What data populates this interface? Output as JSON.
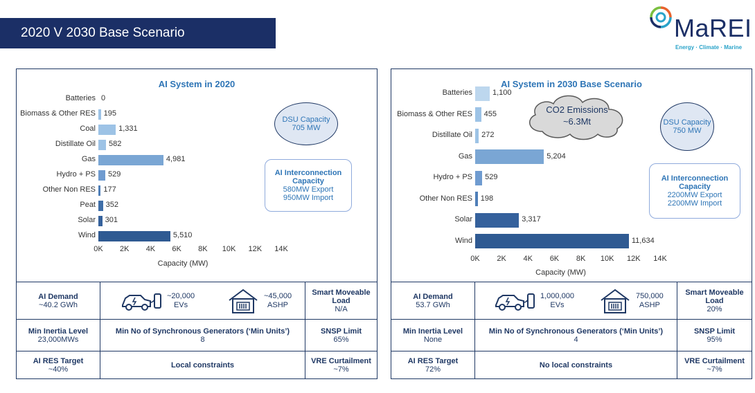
{
  "header": {
    "title": "2020 V 2030 Base Scenario"
  },
  "logo": {
    "name": "MaREI",
    "tagline": "Energy · Climate · Marine"
  },
  "panels": [
    {
      "chart_title": "AI System in 2020",
      "dsu": {
        "title": "DSU Capacity",
        "value": "705 MW"
      },
      "interconnection": {
        "title": "AI Interconnection Capacity",
        "export": "580MW Export",
        "import": "950MW Import"
      },
      "cloud": null,
      "table": {
        "demand_title": "AI Demand",
        "demand_value": "~40.2 GWh",
        "evs_value": "~20,000",
        "evs_label": "EVs",
        "ashp_value": "~45,000",
        "ashp_label": "ASHP",
        "smart_title": "Smart Moveable Load",
        "smart_value": "N/A",
        "inertia_title": "Min Inertia Level",
        "inertia_value": "23,000MWs",
        "gens_title": "Min No of Synchronous Generators (‘Min Units’)",
        "gens_value": "8",
        "snsp_title": "SNSP Limit",
        "snsp_value": "65%",
        "res_title": "AI RES Target",
        "res_value": "~40%",
        "constraints": "Local constraints",
        "vre_title": "VRE Curtailment",
        "vre_value": "~7%"
      }
    },
    {
      "chart_title": "AI System in 2030 Base Scenario",
      "dsu": {
        "title": "DSU Capacity",
        "value": "750 MW"
      },
      "interconnection": {
        "title": "AI Interconnection Capacity",
        "export": "2200MW Export",
        "import": "2200MW Import"
      },
      "cloud": {
        "title": "CO2 Emissions",
        "value": "~6.3Mt"
      },
      "table": {
        "demand_title": "AI Demand",
        "demand_value": "53.7 GWh",
        "evs_value": "1,000,000",
        "evs_label": "EVs",
        "ashp_value": "750,000",
        "ashp_label": "ASHP",
        "smart_title": "Smart Moveable Load",
        "smart_value": "20%",
        "inertia_title": "Min Inertia Level",
        "inertia_value": "None",
        "gens_title": "Min No of Synchronous Generators (‘Min Units’)",
        "gens_value": "4",
        "snsp_title": "SNSP Limit",
        "snsp_value": "95%",
        "res_title": "AI RES Target",
        "res_value": "72%",
        "constraints": "No local constraints",
        "vre_title": "VRE Curtailment",
        "vre_value": "~7%"
      }
    }
  ],
  "chart_data": [
    {
      "type": "bar",
      "orientation": "horizontal",
      "title": "AI System in 2020",
      "xlabel": "Capacity (MW)",
      "xlim": [
        0,
        14000
      ],
      "ticks": [
        "0K",
        "2K",
        "4K",
        "6K",
        "8K",
        "10K",
        "12K",
        "14K"
      ],
      "categories": [
        "Batteries",
        "Biomass & Other RES",
        "Coal",
        "Distillate Oil",
        "Gas",
        "Hydro + PS",
        "Other Non RES",
        "Peat",
        "Solar",
        "Wind"
      ],
      "values": [
        0,
        195,
        1331,
        582,
        4981,
        529,
        177,
        352,
        301,
        5510
      ],
      "value_labels": [
        "0",
        "195",
        "1,331",
        "582",
        "4,981",
        "529",
        "177",
        "352",
        "301",
        "5,510"
      ],
      "colors": [
        "#bdd7ee",
        "#9dc3e6",
        "#9dc3e6",
        "#9dc3e6",
        "#7aa6d4",
        "#6f9bd0",
        "#4f7fb8",
        "#3f6ea8",
        "#35619c",
        "#2f5a92"
      ]
    },
    {
      "type": "bar",
      "orientation": "horizontal",
      "title": "AI System in 2030 Base Scenario",
      "xlabel": "Capacity (MW)",
      "xlim": [
        0,
        14000
      ],
      "ticks": [
        "0K",
        "2K",
        "4K",
        "6K",
        "8K",
        "10K",
        "12K",
        "14K"
      ],
      "categories": [
        "Batteries",
        "Biomass & Other RES",
        "Distillate Oil",
        "Gas",
        "Hydro + PS",
        "Other Non RES",
        "Solar",
        "Wind"
      ],
      "values": [
        1100,
        455,
        272,
        5204,
        529,
        198,
        3317,
        11634
      ],
      "value_labels": [
        "1,100",
        "455",
        "272",
        "5,204",
        "529",
        "198",
        "3,317",
        "11,634"
      ],
      "colors": [
        "#bdd7ee",
        "#9dc3e6",
        "#9dc3e6",
        "#7aa6d4",
        "#6f9bd0",
        "#4f7fb8",
        "#35619c",
        "#2f5a92"
      ]
    }
  ]
}
